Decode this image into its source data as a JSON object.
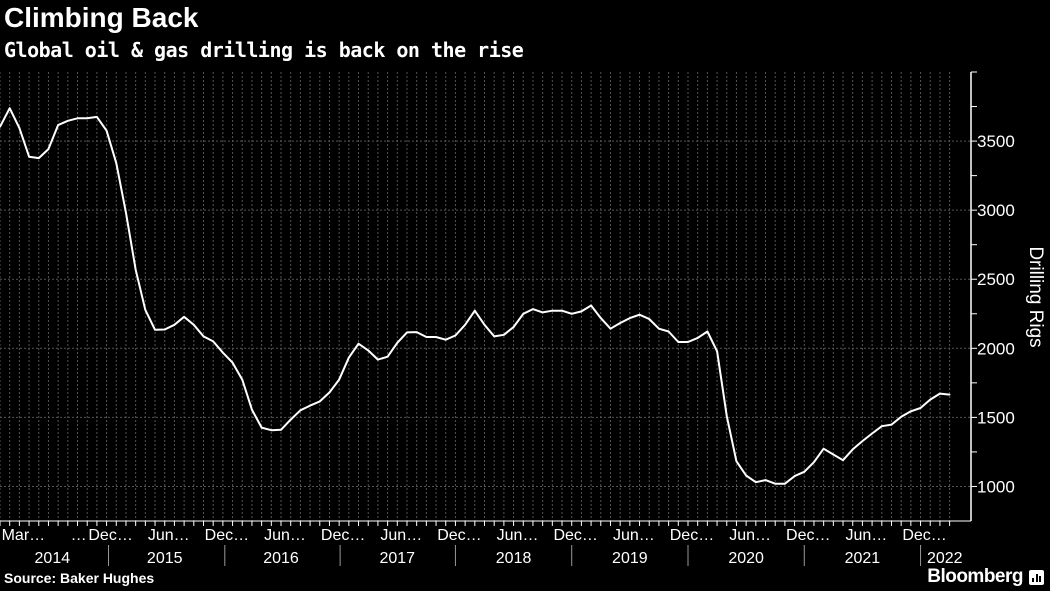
{
  "header": {
    "title": "Climbing Back",
    "subtitle": "Global oil & gas drilling is back on the rise"
  },
  "footer": {
    "source": "Source: Baker Hughes",
    "brand": "Bloomberg"
  },
  "colors": {
    "background": "#000000",
    "line": "#ffffff",
    "grid": "#555555"
  },
  "chart_data": {
    "type": "line",
    "title": "Climbing Back",
    "subtitle": "Global oil & gas drilling is back on the rise",
    "xlabel": "",
    "ylabel": "Drilling Rigs",
    "ylim": [
      750,
      4000
    ],
    "yticks": [
      1000,
      1500,
      2000,
      2500,
      3000,
      3500
    ],
    "yminor_ticks": [
      1250,
      1750,
      2250,
      2750,
      3250,
      3750,
      4000
    ],
    "grid": true,
    "x_note": "monthly observations, index 0 = first month shown (early 2014)",
    "series": [
      {
        "name": "Drilling Rigs",
        "values": [
          3603,
          3738,
          3594,
          3387,
          3377,
          3442,
          3616,
          3647,
          3665,
          3665,
          3675,
          3575,
          3340,
          2980,
          2568,
          2279,
          2134,
          2136,
          2170,
          2228,
          2170,
          2086,
          2050,
          1968,
          1896,
          1773,
          1556,
          1426,
          1407,
          1410,
          1484,
          1551,
          1585,
          1616,
          1681,
          1773,
          1932,
          2033,
          1985,
          1918,
          1939,
          2040,
          2115,
          2117,
          2082,
          2082,
          2062,
          2093,
          2170,
          2272,
          2170,
          2086,
          2098,
          2154,
          2250,
          2284,
          2260,
          2272,
          2272,
          2250,
          2267,
          2310,
          2219,
          2142,
          2183,
          2219,
          2243,
          2212,
          2142,
          2122,
          2046,
          2046,
          2075,
          2122,
          1978,
          1508,
          1183,
          1079,
          1031,
          1046,
          1020,
          1020,
          1075,
          1106,
          1176,
          1273,
          1231,
          1190,
          1268,
          1328,
          1383,
          1436,
          1448,
          1504,
          1544,
          1568,
          1629,
          1672,
          1665
        ]
      }
    ],
    "x_tick_labels": [
      {
        "label": "Mar…",
        "index": 2
      },
      {
        "label": "…",
        "index": 7.7
      },
      {
        "label": "Dec…",
        "index": 11
      },
      {
        "label": "Jun…",
        "index": 17
      },
      {
        "label": "Dec…",
        "index": 23
      },
      {
        "label": "Jun…",
        "index": 29
      },
      {
        "label": "Dec…",
        "index": 35
      },
      {
        "label": "Jun…",
        "index": 41
      },
      {
        "label": "Dec…",
        "index": 47
      },
      {
        "label": "Jun…",
        "index": 53
      },
      {
        "label": "Dec…",
        "index": 59
      },
      {
        "label": "Jun…",
        "index": 65
      },
      {
        "label": "Dec…",
        "index": 71
      },
      {
        "label": "Jun…",
        "index": 77
      },
      {
        "label": "Dec…",
        "index": 83
      },
      {
        "label": "Jun…",
        "index": 89
      },
      {
        "label": "Dec…",
        "index": 95
      }
    ],
    "year_labels": [
      {
        "label": "2014",
        "index": 5.4
      },
      {
        "label": "2015",
        "index": 17
      },
      {
        "label": "2016",
        "index": 29
      },
      {
        "label": "2017",
        "index": 41
      },
      {
        "label": "2018",
        "index": 53
      },
      {
        "label": "2019",
        "index": 65
      },
      {
        "label": "2020",
        "index": 77
      },
      {
        "label": "2021",
        "index": 89
      },
      {
        "label": "2022",
        "index": 97.5
      }
    ],
    "year_separators": [
      11.2,
      23.2,
      35.1,
      47,
      59,
      71,
      83,
      95
    ]
  }
}
